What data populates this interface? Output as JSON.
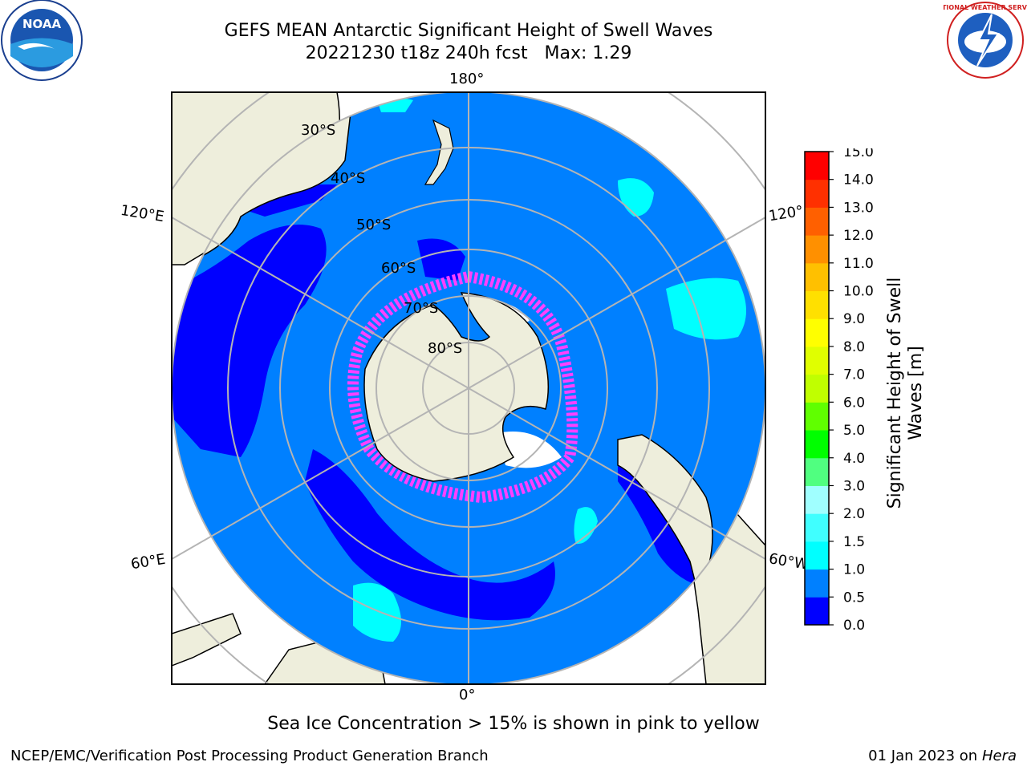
{
  "header": {
    "title_line1": "GEFS MEAN Antarctic Significant Height of Swell Waves",
    "title_line2": "20221230 t18z 240h fcst   Max: 1.29"
  },
  "logos": {
    "noaa_text": "NOAA",
    "nws_ring_text": "NATIONAL WEATHER SERVICE"
  },
  "map": {
    "projection": "south-polar-stereographic",
    "longitude_labels": {
      "top": "180°",
      "bottom": "0°",
      "upper_left": "120°E",
      "upper_right": "120°",
      "lower_left": "60°E",
      "lower_right": "60°W"
    },
    "latitude_labels": [
      "30°S",
      "40°S",
      "50°S",
      "60°S",
      "70°S",
      "80°S"
    ],
    "colors": {
      "ocean": "#0080ff",
      "low_swell": "#0000ff",
      "mid_swell": "#00ffff",
      "land": "#eeeedc",
      "ice": "#ffffff",
      "gridline": "#b4b4b4"
    }
  },
  "colorbar": {
    "label": "Significant Height of Swell Waves [m]",
    "ticks": [
      "0.0",
      "0.5",
      "1.0",
      "1.5",
      "2.0",
      "3.0",
      "4.0",
      "5.0",
      "6.0",
      "7.0",
      "8.0",
      "9.0",
      "10.0",
      "11.0",
      "12.0",
      "13.0",
      "14.0",
      "15.0"
    ],
    "colors": [
      "#0000ff",
      "#0080ff",
      "#00ffff",
      "#40ffff",
      "#a0ffff",
      "#50ff80",
      "#00ff00",
      "#60ff00",
      "#c0ff00",
      "#e0ff00",
      "#ffff00",
      "#ffe000",
      "#ffc000",
      "#ff9000",
      "#ff6000",
      "#ff3000",
      "#ff0000"
    ]
  },
  "notes": {
    "sea_ice": "Sea Ice Concentration > 15% is shown in pink to yellow"
  },
  "footer": {
    "left": "NCEP/EMC/Verification Post Processing Product Generation Branch",
    "right_prefix": "01 Jan 2023 on ",
    "right_italic": "Hera"
  }
}
